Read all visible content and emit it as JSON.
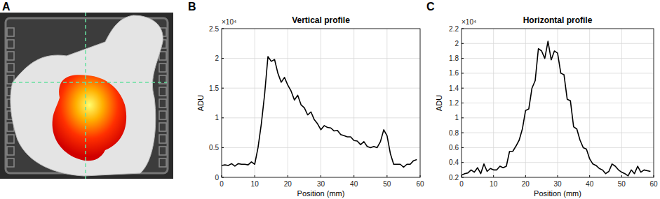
{
  "chart_data": [
    {
      "type": "image",
      "panel_label": "A"
    },
    {
      "type": "line",
      "panel_label": "B",
      "title": "Vertical profile",
      "x_label": "Position (mm)",
      "y_label": "ADU",
      "annotations": [
        "×10⁴"
      ],
      "color": "#000000",
      "grid": true,
      "xlim": [
        0,
        60
      ],
      "xticks": [
        0,
        10,
        20,
        30,
        40,
        50,
        60
      ],
      "ylim": [
        0,
        2.5
      ],
      "yticks": [
        0,
        0.5,
        1,
        1.5,
        2,
        2.5
      ],
      "x": [
        0,
        1,
        2,
        3,
        4,
        5,
        6,
        7,
        8,
        9,
        10,
        11,
        12,
        13,
        14,
        15,
        16,
        17,
        18,
        19,
        20,
        21,
        22,
        23,
        24,
        25,
        26,
        27,
        28,
        29,
        30,
        31,
        32,
        33,
        34,
        35,
        36,
        37,
        38,
        39,
        40,
        41,
        42,
        43,
        44,
        45,
        46,
        47,
        48,
        49,
        50,
        51,
        52,
        53,
        54,
        55,
        56,
        57,
        58,
        59
      ],
      "values": [
        0.2,
        0.21,
        0.2,
        0.23,
        0.19,
        0.23,
        0.22,
        0.22,
        0.21,
        0.26,
        0.22,
        0.5,
        0.9,
        1.4,
        2.03,
        1.95,
        1.98,
        1.75,
        1.6,
        1.68,
        1.55,
        1.45,
        1.3,
        1.38,
        1.22,
        1.17,
        1.05,
        1.1,
        0.97,
        0.9,
        0.8,
        0.87,
        0.84,
        0.83,
        0.78,
        0.79,
        0.72,
        0.7,
        0.68,
        0.68,
        0.62,
        0.61,
        0.55,
        0.6,
        0.52,
        0.5,
        0.52,
        0.5,
        0.6,
        0.8,
        0.7,
        0.4,
        0.22,
        0.22,
        0.22,
        0.17,
        0.22,
        0.22,
        0.28,
        0.3
      ]
    },
    {
      "type": "line",
      "panel_label": "C",
      "title": "Horizontal profile",
      "x_label": "Position (mm)",
      "y_label": "ADU",
      "annotations": [
        "×10⁴"
      ],
      "color": "#000000",
      "grid": true,
      "xlim": [
        0,
        60
      ],
      "xticks": [
        0,
        10,
        20,
        30,
        40,
        50,
        60
      ],
      "ylim": [
        0.2,
        2.2
      ],
      "yticks": [
        0.2,
        0.4,
        0.6,
        0.8,
        1,
        1.2,
        1.4,
        1.6,
        1.8,
        2,
        2.2
      ],
      "x": [
        0,
        1,
        2,
        3,
        4,
        5,
        6,
        7,
        8,
        9,
        10,
        11,
        12,
        13,
        14,
        15,
        16,
        17,
        18,
        19,
        20,
        21,
        22,
        23,
        24,
        25,
        26,
        27,
        28,
        29,
        30,
        31,
        32,
        33,
        34,
        35,
        36,
        37,
        38,
        39,
        40,
        41,
        42,
        43,
        44,
        45,
        46,
        47,
        48,
        49,
        50,
        51,
        52,
        53,
        54,
        55,
        56,
        57,
        58,
        59
      ],
      "values": [
        0.23,
        0.25,
        0.26,
        0.3,
        0.27,
        0.33,
        0.25,
        0.38,
        0.28,
        0.32,
        0.3,
        0.3,
        0.35,
        0.33,
        0.35,
        0.55,
        0.55,
        0.62,
        0.7,
        0.85,
        1.1,
        1.12,
        1.4,
        1.5,
        1.93,
        1.9,
        1.8,
        2.03,
        1.78,
        1.9,
        1.87,
        1.6,
        1.58,
        1.25,
        1.23,
        0.88,
        0.85,
        0.7,
        0.6,
        0.58,
        0.45,
        0.38,
        0.36,
        0.32,
        0.3,
        0.25,
        0.28,
        0.38,
        0.35,
        0.3,
        0.27,
        0.25,
        0.22,
        0.3,
        0.25,
        0.35,
        0.27,
        0.3,
        0.29,
        0.28
      ]
    }
  ]
}
